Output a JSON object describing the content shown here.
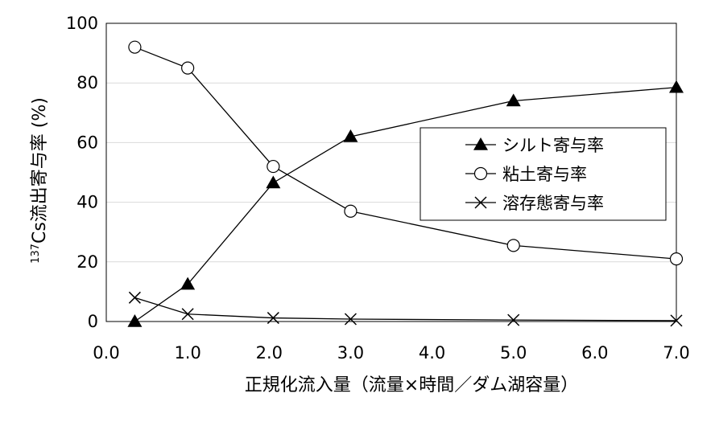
{
  "chart_data": {
    "type": "line",
    "xlabel": "正規化流入量（流量×時間／ダム湖容量）",
    "ylabel_sup": "137",
    "ylabel_main": "Cs流出寄与率 (%)",
    "xlim": [
      0,
      7
    ],
    "ylim": [
      0,
      100
    ],
    "x_ticks": [
      "0.0",
      "1.0",
      "2.0",
      "3.0",
      "4.0",
      "5.0",
      "6.0",
      "7.0"
    ],
    "y_ticks": [
      "0",
      "20",
      "40",
      "60",
      "80",
      "100"
    ],
    "x_tick_values": [
      0,
      1,
      2,
      3,
      4,
      5,
      6,
      7
    ],
    "y_tick_values": [
      0,
      20,
      40,
      60,
      80,
      100
    ],
    "grid": "horizontal",
    "legend_position": "center-right",
    "series": [
      {
        "name": "シルト寄与率",
        "marker": "triangle-filled",
        "x": [
          0.35,
          1.0,
          2.05,
          3.0,
          5.0,
          7.0
        ],
        "values": [
          0,
          12.5,
          46.5,
          62,
          74,
          78.5
        ]
      },
      {
        "name": "粘土寄与率",
        "marker": "circle-open",
        "x": [
          0.35,
          1.0,
          2.05,
          3.0,
          5.0,
          7.0
        ],
        "values": [
          92,
          85,
          52,
          37,
          25.5,
          21
        ]
      },
      {
        "name": "溶存態寄与率",
        "marker": "x",
        "x": [
          0.35,
          1.0,
          2.05,
          3.0,
          5.0,
          7.0
        ],
        "values": [
          8,
          2.5,
          1.2,
          0.8,
          0.5,
          0.3
        ]
      }
    ]
  }
}
